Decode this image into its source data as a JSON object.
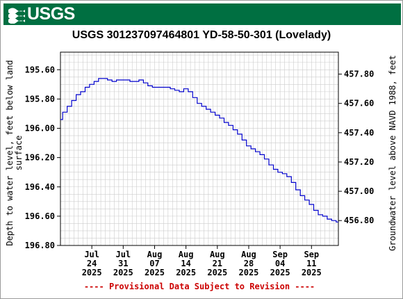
{
  "header": {
    "logo_text": "USGS",
    "logo_icon": "usgs-wave-icon",
    "brand_color": "#006f41"
  },
  "chart_data": {
    "type": "line",
    "title": "USGS 301237097464801 YD-58-50-301 (Lovelady)",
    "ylabel_left": [
      "Depth to water level, feet below land",
      "surface"
    ],
    "ylabel_right": "Groundwater level above NAVD 1988, feet",
    "footer": "---- Provisional Data Subject to Revision ----",
    "grid": true,
    "line_color": "#0000cc",
    "x_range": [
      "2025-07-17",
      "2025-09-17"
    ],
    "y_left_range": [
      195.48,
      196.8
    ],
    "y_left_inverted": true,
    "y_left_ticks": [
      "195.60",
      "195.80",
      "196.00",
      "196.20",
      "196.40",
      "196.60",
      "196.80"
    ],
    "y_right_ticks": [
      "457.80",
      "457.60",
      "457.40",
      "457.20",
      "457.00",
      "456.80"
    ],
    "x_ticks": [
      {
        "date": "2025-07-24",
        "label": [
          "Jul",
          "24",
          "2025"
        ]
      },
      {
        "date": "2025-07-31",
        "label": [
          "Jul",
          "31",
          "2025"
        ]
      },
      {
        "date": "2025-08-07",
        "label": [
          "Aug",
          "07",
          "2025"
        ]
      },
      {
        "date": "2025-08-14",
        "label": [
          "Aug",
          "14",
          "2025"
        ]
      },
      {
        "date": "2025-08-21",
        "label": [
          "Aug",
          "21",
          "2025"
        ]
      },
      {
        "date": "2025-08-28",
        "label": [
          "Aug",
          "28",
          "2025"
        ]
      },
      {
        "date": "2025-09-04",
        "label": [
          "Sep",
          "04",
          "2025"
        ]
      },
      {
        "date": "2025-09-11",
        "label": [
          "Sep",
          "11",
          "2025"
        ]
      }
    ],
    "series": [
      {
        "x": [
          "2025-07-17",
          "2025-07-18",
          "2025-07-19",
          "2025-07-20",
          "2025-07-21",
          "2025-07-22",
          "2025-07-23",
          "2025-07-24",
          "2025-07-25",
          "2025-07-26",
          "2025-07-27",
          "2025-07-28",
          "2025-07-29",
          "2025-07-30",
          "2025-07-31",
          "2025-08-01",
          "2025-08-02",
          "2025-08-03",
          "2025-08-04",
          "2025-08-05",
          "2025-08-06",
          "2025-08-07",
          "2025-08-08",
          "2025-08-09",
          "2025-08-10",
          "2025-08-11",
          "2025-08-12",
          "2025-08-13",
          "2025-08-14",
          "2025-08-15",
          "2025-08-16",
          "2025-08-17",
          "2025-08-18",
          "2025-08-19",
          "2025-08-20",
          "2025-08-21",
          "2025-08-22",
          "2025-08-23",
          "2025-08-24",
          "2025-08-25",
          "2025-08-26",
          "2025-08-27",
          "2025-08-28",
          "2025-08-29",
          "2025-08-30",
          "2025-08-31",
          "2025-09-01",
          "2025-09-02",
          "2025-09-03",
          "2025-09-04",
          "2025-09-05",
          "2025-09-06",
          "2025-09-07",
          "2025-09-08",
          "2025-09-09",
          "2025-09-10",
          "2025-09-11",
          "2025-09-12",
          "2025-09-13",
          "2025-09-14",
          "2025-09-15",
          "2025-09-16",
          "2025-09-17"
        ],
        "y": [
          195.94,
          195.89,
          195.85,
          195.81,
          195.77,
          195.75,
          195.72,
          195.7,
          195.68,
          195.66,
          195.66,
          195.67,
          195.68,
          195.67,
          195.67,
          195.67,
          195.68,
          195.68,
          195.67,
          195.69,
          195.71,
          195.72,
          195.72,
          195.72,
          195.72,
          195.73,
          195.74,
          195.75,
          195.73,
          195.75,
          195.79,
          195.83,
          195.85,
          195.87,
          195.89,
          195.91,
          195.93,
          195.96,
          195.98,
          196.01,
          196.04,
          196.08,
          196.12,
          196.14,
          196.16,
          196.18,
          196.21,
          196.25,
          196.28,
          196.3,
          196.31,
          196.33,
          196.37,
          196.42,
          196.46,
          196.49,
          196.52,
          196.56,
          196.59,
          196.6,
          196.62,
          196.63,
          196.64
        ]
      }
    ]
  }
}
